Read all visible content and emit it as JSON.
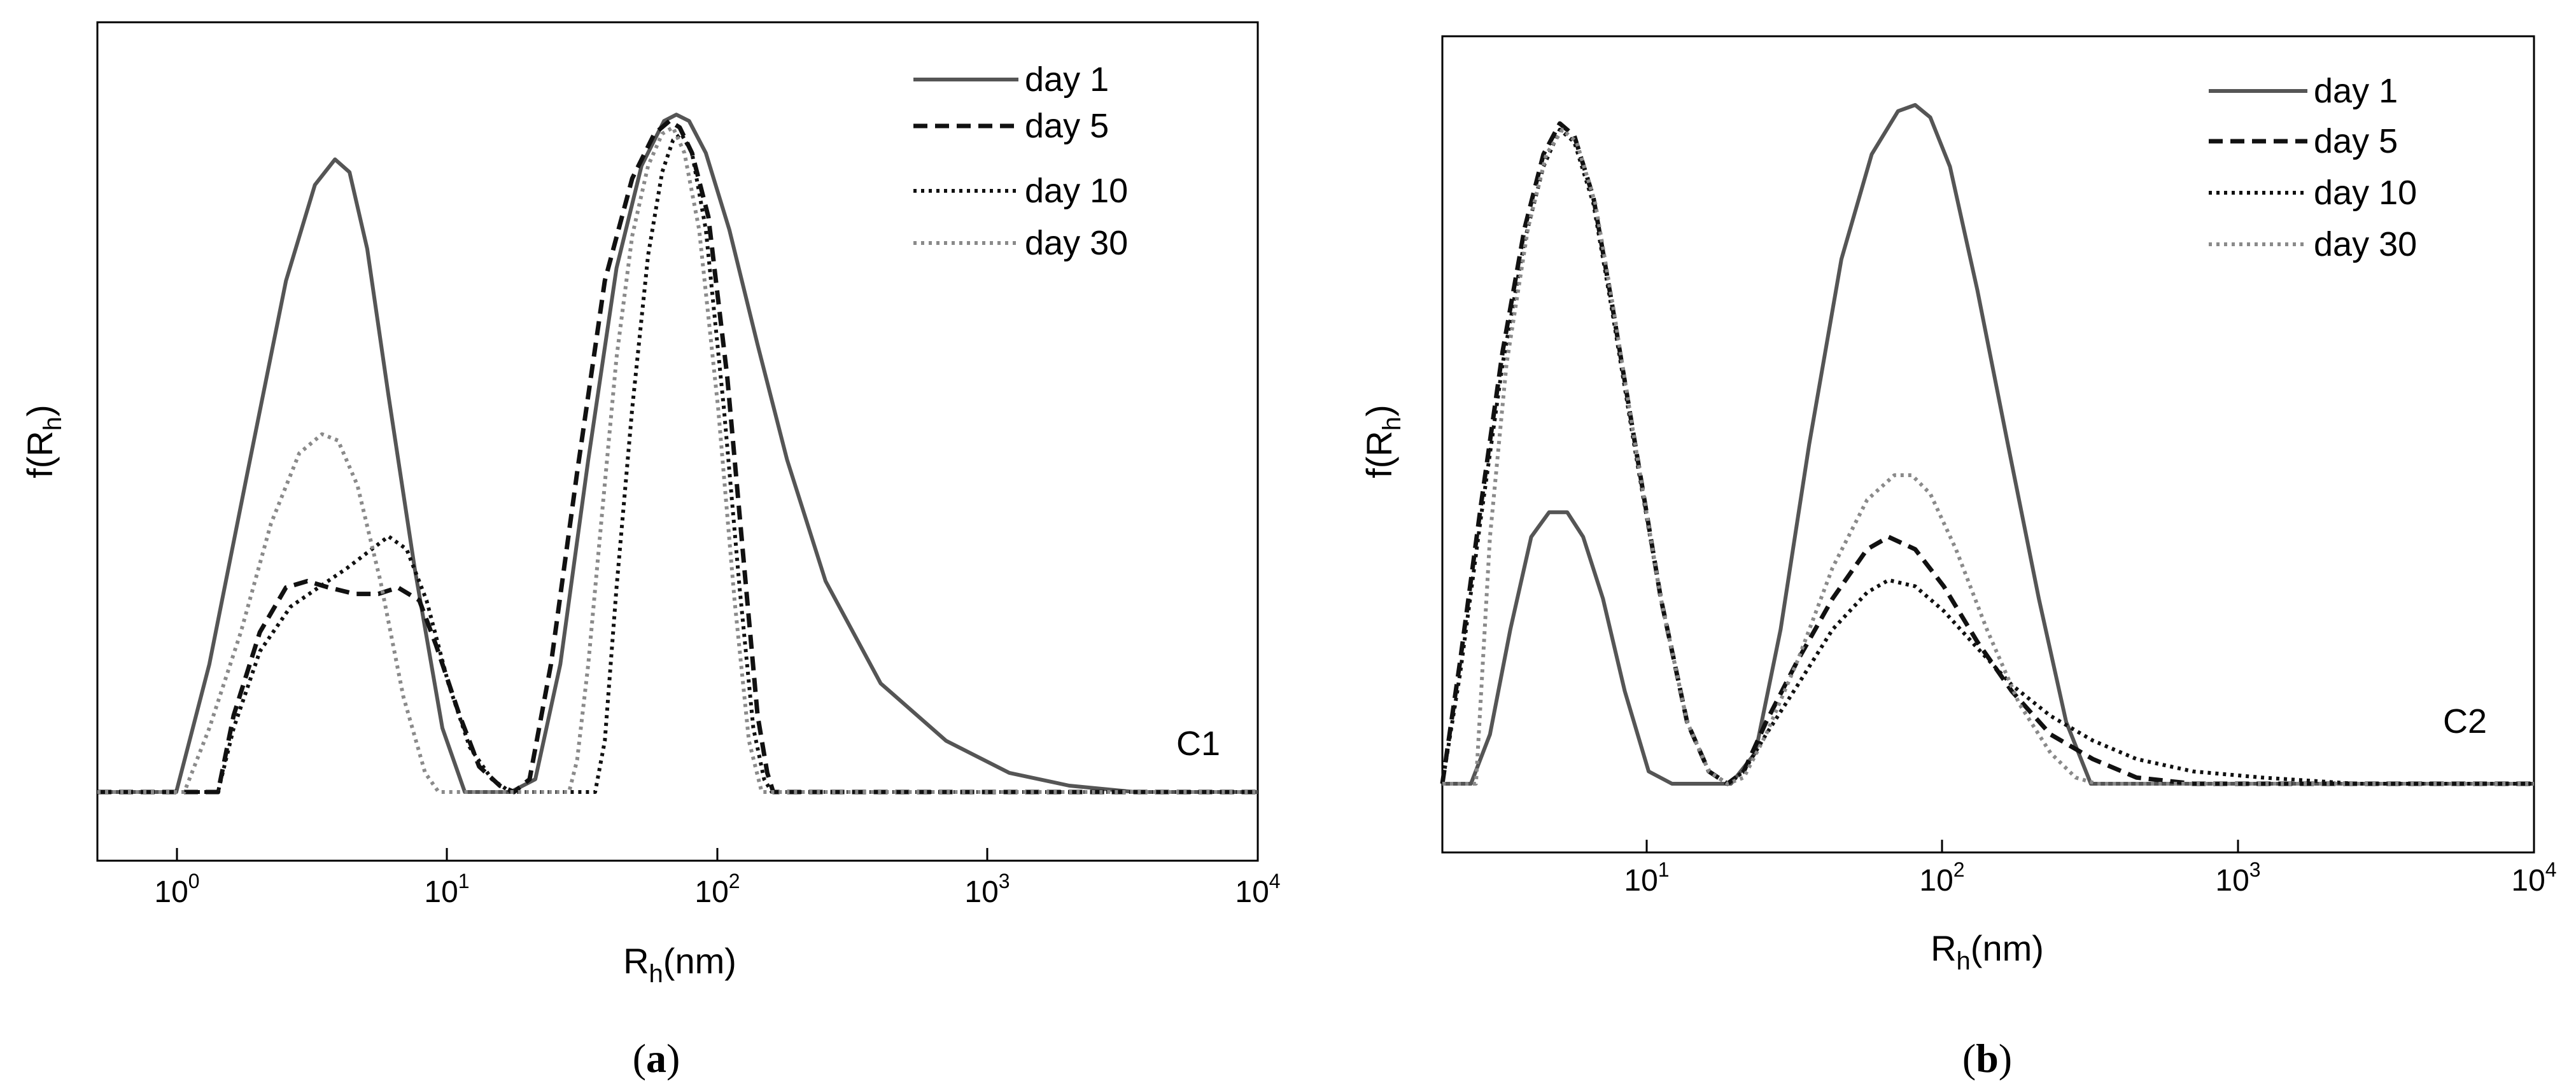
{
  "chart_data": [
    {
      "type": "line",
      "panel_label": "C1",
      "caption_letter": "a",
      "xscale": "log",
      "xlim": [
        0.5,
        10000
      ],
      "ylim": [
        0,
        1.1
      ],
      "xlabel_main": "R",
      "xlabel_sub": "h",
      "xlabel_unit": "(nm)",
      "ylabel_main": "f(R",
      "ylabel_sub": "h",
      "ylabel_close": ")",
      "xticks": [
        {
          "value": 1,
          "base": "10",
          "exp": "0"
        },
        {
          "value": 10,
          "base": "10",
          "exp": "1"
        },
        {
          "value": 100,
          "base": "10",
          "exp": "2"
        },
        {
          "value": 1000,
          "base": "10",
          "exp": "3"
        },
        {
          "value": 10000,
          "base": "10",
          "exp": "4"
        }
      ],
      "legend_position": "top-right",
      "series": [
        {
          "name": "day 1",
          "color": "#555555",
          "dash": "solid",
          "x": [
            0.5,
            0.98,
            1.3,
            1.8,
            2.5,
            3.2,
            3.8,
            4.3,
            5,
            6,
            7.5,
            9.5,
            11.5,
            14,
            17,
            21,
            26,
            33,
            42,
            52,
            63,
            70,
            78,
            90,
            110,
            140,
            180,
            250,
            400,
            700,
            1200,
            2000,
            3500,
            6000,
            10000
          ],
          "y": [
            0,
            0,
            0.2,
            0.5,
            0.8,
            0.95,
            0.99,
            0.97,
            0.85,
            0.62,
            0.35,
            0.1,
            0,
            0,
            0,
            0.02,
            0.2,
            0.52,
            0.82,
            0.98,
            1.05,
            1.06,
            1.05,
            1.0,
            0.88,
            0.7,
            0.52,
            0.33,
            0.17,
            0.08,
            0.03,
            0.01,
            0,
            0,
            0
          ]
        },
        {
          "name": "day 5",
          "color": "#111111",
          "dash": "dashed",
          "x": [
            0.5,
            1.4,
            1.6,
            2.0,
            2.5,
            3.0,
            3.6,
            4.5,
            5.5,
            6.5,
            7.8,
            9.0,
            11,
            13,
            15.5,
            17.5,
            20,
            24,
            30,
            38,
            48,
            58,
            66,
            72,
            80,
            92,
            108,
            125,
            140,
            152,
            160,
            200,
            10000
          ],
          "y": [
            0,
            0,
            0.12,
            0.25,
            0.32,
            0.33,
            0.32,
            0.31,
            0.31,
            0.32,
            0.3,
            0.23,
            0.12,
            0.04,
            0.01,
            0,
            0.02,
            0.2,
            0.5,
            0.8,
            0.96,
            1.03,
            1.05,
            1.04,
            1.0,
            0.9,
            0.65,
            0.35,
            0.12,
            0.03,
            0,
            0,
            0
          ]
        },
        {
          "name": "day 10",
          "color": "#111111",
          "dash": "dotted",
          "x": [
            0.5,
            1.4,
            1.6,
            2.0,
            2.6,
            3.3,
            4.2,
            5.2,
            6.0,
            7.0,
            8.3,
            10,
            12,
            14.5,
            17,
            20,
            35,
            38,
            42,
            48,
            55,
            62,
            68,
            73,
            80,
            90,
            105,
            120,
            135,
            148,
            158,
            10000
          ],
          "y": [
            0,
            0,
            0.1,
            0.22,
            0.29,
            0.32,
            0.35,
            0.38,
            0.4,
            0.38,
            0.3,
            0.17,
            0.07,
            0.02,
            0,
            0,
            0,
            0.08,
            0.32,
            0.6,
            0.84,
            0.97,
            1.02,
            1.03,
            1.0,
            0.88,
            0.6,
            0.32,
            0.1,
            0.02,
            0,
            0
          ]
        },
        {
          "name": "day 30",
          "color": "#8a8a8a",
          "dash": "dotted",
          "x": [
            0.5,
            1.05,
            1.3,
            1.7,
            2.2,
            2.8,
            3.4,
            3.9,
            4.6,
            5.6,
            6.8,
            8.2,
            9.2,
            28,
            30,
            33,
            37,
            42,
            48,
            55,
            62,
            68,
            75,
            85,
            100,
            115,
            130,
            145,
            10000
          ],
          "y": [
            0,
            0,
            0.1,
            0.25,
            0.42,
            0.53,
            0.56,
            0.55,
            0.48,
            0.33,
            0.15,
            0.03,
            0,
            0,
            0.05,
            0.2,
            0.43,
            0.68,
            0.87,
            0.98,
            1.03,
            1.04,
            1.0,
            0.88,
            0.6,
            0.3,
            0.08,
            0,
            0
          ]
        }
      ]
    },
    {
      "type": "line",
      "panel_label": "C2",
      "caption_letter": "b",
      "xscale": "log",
      "xlim": [
        2,
        10000
      ],
      "ylim": [
        0,
        1.1
      ],
      "xlabel_main": "R",
      "xlabel_sub": "h",
      "xlabel_unit": "(nm)",
      "ylabel_main": "f(R",
      "ylabel_sub": "h",
      "ylabel_close": ")",
      "xticks": [
        {
          "value": 10,
          "base": "10",
          "exp": "1"
        },
        {
          "value": 100,
          "base": "10",
          "exp": "2"
        },
        {
          "value": 1000,
          "base": "10",
          "exp": "3"
        },
        {
          "value": 10000,
          "base": "10",
          "exp": "4"
        }
      ],
      "legend_position": "top-right",
      "series": [
        {
          "name": "day 1",
          "color": "#555555",
          "dash": "solid",
          "x": [
            2,
            2.5,
            2.9,
            3.4,
            4.0,
            4.6,
            5.3,
            6.0,
            7.0,
            8.3,
            10,
            12,
            15,
            19,
            23,
            28,
            35,
            45,
            57,
            70,
            80,
            90,
            105,
            130,
            165,
            210,
            260,
            315,
            330,
            10000
          ],
          "y": [
            0,
            0,
            0.08,
            0.25,
            0.4,
            0.44,
            0.44,
            0.4,
            0.3,
            0.15,
            0.02,
            0,
            0,
            0,
            0.05,
            0.25,
            0.55,
            0.85,
            1.02,
            1.09,
            1.1,
            1.08,
            1.0,
            0.8,
            0.55,
            0.3,
            0.1,
            0,
            0,
            0
          ]
        },
        {
          "name": "day 5",
          "color": "#111111",
          "dash": "dashed",
          "x": [
            2,
            2.3,
            2.7,
            3.2,
            3.8,
            4.4,
            5.0,
            5.6,
            6.5,
            7.5,
            9,
            11,
            13.5,
            16,
            18.5,
            21,
            25,
            32,
            42,
            55,
            65,
            80,
            100,
            130,
            170,
            230,
            320,
            450,
            700,
            10000
          ],
          "y": [
            0,
            0.2,
            0.45,
            0.7,
            0.9,
            1.02,
            1.07,
            1.05,
            0.95,
            0.78,
            0.55,
            0.3,
            0.1,
            0.02,
            0,
            0.02,
            0.1,
            0.2,
            0.3,
            0.38,
            0.4,
            0.38,
            0.32,
            0.23,
            0.15,
            0.08,
            0.04,
            0.01,
            0,
            0
          ]
        },
        {
          "name": "day 10",
          "color": "#111111",
          "dash": "dotted",
          "x": [
            2,
            2.3,
            2.7,
            3.2,
            3.8,
            4.4,
            5.0,
            5.6,
            6.5,
            7.5,
            9,
            11,
            13.5,
            16,
            18.5,
            21,
            25,
            32,
            42,
            55,
            65,
            80,
            100,
            130,
            170,
            230,
            320,
            450,
            700,
            1200,
            2500,
            10000
          ],
          "y": [
            0,
            0.18,
            0.43,
            0.68,
            0.88,
            1.0,
            1.06,
            1.04,
            0.94,
            0.77,
            0.54,
            0.3,
            0.1,
            0.02,
            0,
            0.02,
            0.08,
            0.16,
            0.25,
            0.31,
            0.33,
            0.32,
            0.28,
            0.22,
            0.16,
            0.11,
            0.07,
            0.04,
            0.02,
            0.01,
            0,
            0
          ]
        },
        {
          "name": "day 30",
          "color": "#8a8a8a",
          "dash": "dotted",
          "x": [
            2,
            2.6,
            2.9,
            3.3,
            3.9,
            4.5,
            5.1,
            5.7,
            6.6,
            7.6,
            9,
            11,
            13.5,
            16,
            18.5,
            21,
            25,
            32,
            42,
            55,
            68,
            78,
            90,
            110,
            140,
            180,
            230,
            280,
            330,
            10000
          ],
          "y": [
            0,
            0,
            0.4,
            0.68,
            0.9,
            1.02,
            1.06,
            1.04,
            0.94,
            0.77,
            0.55,
            0.3,
            0.1,
            0.02,
            0,
            0.01,
            0.08,
            0.2,
            0.35,
            0.46,
            0.5,
            0.5,
            0.47,
            0.38,
            0.25,
            0.13,
            0.05,
            0.01,
            0,
            0
          ]
        }
      ]
    }
  ]
}
